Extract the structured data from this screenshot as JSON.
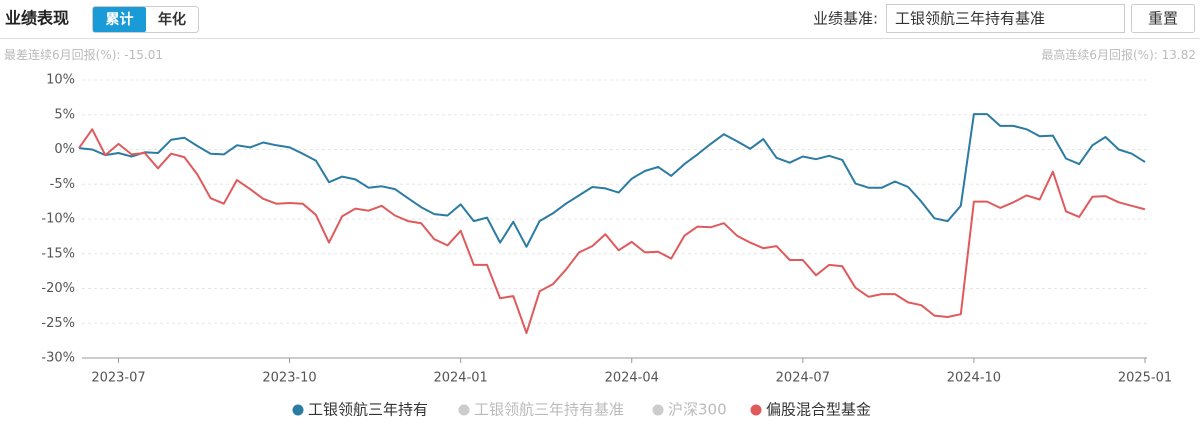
{
  "header": {
    "title": "业绩表现",
    "tabs": [
      "累计",
      "年化"
    ],
    "active_tab": 0,
    "benchmark_label": "业绩基准:",
    "benchmark_value": "工银领航三年持有基准",
    "reset": "重置"
  },
  "stats": {
    "worst_label": "最差连续6月回报(%):",
    "worst_value": -15.01,
    "best_label": "最高连续6月回报(%):",
    "best_value": 13.82
  },
  "chart_data": {
    "type": "line",
    "categories": [
      null,
      null,
      null,
      "2023-07",
      null,
      null,
      null,
      null,
      null,
      null,
      null,
      null,
      null,
      null,
      null,
      null,
      "2023-10",
      null,
      null,
      null,
      null,
      null,
      null,
      null,
      null,
      null,
      null,
      null,
      null,
      "2024-01",
      null,
      null,
      null,
      null,
      null,
      null,
      null,
      null,
      null,
      null,
      null,
      null,
      "2024-04",
      null,
      null,
      null,
      null,
      null,
      null,
      null,
      null,
      null,
      null,
      null,
      null,
      "2024-07",
      null,
      null,
      null,
      null,
      null,
      null,
      null,
      null,
      null,
      null,
      null,
      null,
      "2024-10",
      null,
      null,
      null,
      null,
      null,
      null,
      null,
      null,
      null,
      null,
      null,
      null,
      "2025-01"
    ],
    "series": [
      {
        "name": "工银领航三年持有",
        "color": "#2b7ba3",
        "visible": true,
        "values": [
          0.2,
          0,
          -0.8,
          -0.5,
          -1,
          -0.4,
          -0.5,
          1.4,
          1.7,
          0.5,
          -0.6,
          -0.7,
          0.6,
          0.3,
          1.0,
          0.6,
          0.3,
          -0.6,
          -1.6,
          -4.7,
          -3.9,
          -4.3,
          -5.5,
          -5.3,
          -5.7,
          -7,
          -8.3,
          -9.3,
          -9.5,
          -7.9,
          -10.3,
          -9.8,
          -13.4,
          -10.4,
          -14,
          -10.3,
          -9.2,
          -7.8,
          -6.6,
          -5.4,
          -5.6,
          -6.2,
          -4.2,
          -3.1,
          -2.5,
          -3.8,
          -2.1,
          -0.7,
          0.8,
          2.2,
          1.2,
          0.1,
          1.5,
          -1.2,
          -1.9,
          -1,
          -1.4,
          -0.9,
          -1.5,
          -4.9,
          -5.5,
          -5.5,
          -4.6,
          -5.4,
          -7.5,
          -9.9,
          -10.3,
          -8.1,
          5.1,
          5.1,
          3.4,
          3.4,
          2.9,
          1.9,
          2.0,
          -1.3,
          -2.1,
          0.6,
          1.8,
          0,
          -0.6,
          -1.8
        ]
      },
      {
        "name": "工银领航三年持有基准",
        "color": "#cccccc",
        "visible": false
      },
      {
        "name": "沪深300",
        "color": "#cccccc",
        "visible": false
      },
      {
        "name": "偏股混合型基金",
        "color": "#e05a5c",
        "visible": true,
        "values": [
          0.2,
          2.9,
          -0.8,
          0.8,
          -0.7,
          -0.5,
          -2.7,
          -0.6,
          -1.1,
          -3.6,
          -7,
          -7.8,
          -4.4,
          -5.7,
          -7.1,
          -7.8,
          -7.7,
          -7.8,
          -9.4,
          -13.4,
          -9.6,
          -8.5,
          -8.8,
          -8.1,
          -9.5,
          -10.3,
          -10.6,
          -12.9,
          -13.8,
          -11.7,
          -16.6,
          -16.6,
          -21.4,
          -21.1,
          -26.4,
          -20.4,
          -19.4,
          -17.3,
          -14.8,
          -13.9,
          -12.2,
          -14.5,
          -13.3,
          -14.8,
          -14.7,
          -15.7,
          -12.4,
          -11.1,
          -11.2,
          -10.6,
          -12.4,
          -13.4,
          -14.2,
          -13.9,
          -15.9,
          -15.9,
          -18.1,
          -16.6,
          -16.8,
          -19.9,
          -21.2,
          -20.8,
          -20.8,
          -22,
          -22.4,
          -23.9,
          -24.1,
          -23.7,
          -7.5,
          -7.5,
          -8.4,
          -7.6,
          -6.6,
          -7.2,
          -3.2,
          -8.9,
          -9.7,
          -6.8,
          -6.7,
          -7.6,
          -8.1,
          -8.6
        ]
      }
    ],
    "ylim": [
      -30,
      10
    ],
    "yticks": [
      {
        "value": -30,
        "label": "-30%"
      },
      {
        "value": -25,
        "label": "-25%"
      },
      {
        "value": -20,
        "label": "-20%"
      },
      {
        "value": -15,
        "label": "-15%"
      },
      {
        "value": -10,
        "label": "-10%"
      },
      {
        "value": -5,
        "label": "-5%"
      },
      {
        "value": 0,
        "label": "0%"
      },
      {
        "value": 5,
        "label": "5%"
      },
      {
        "value": 10,
        "label": "10%"
      }
    ],
    "grid": true,
    "legend": "bottom"
  }
}
